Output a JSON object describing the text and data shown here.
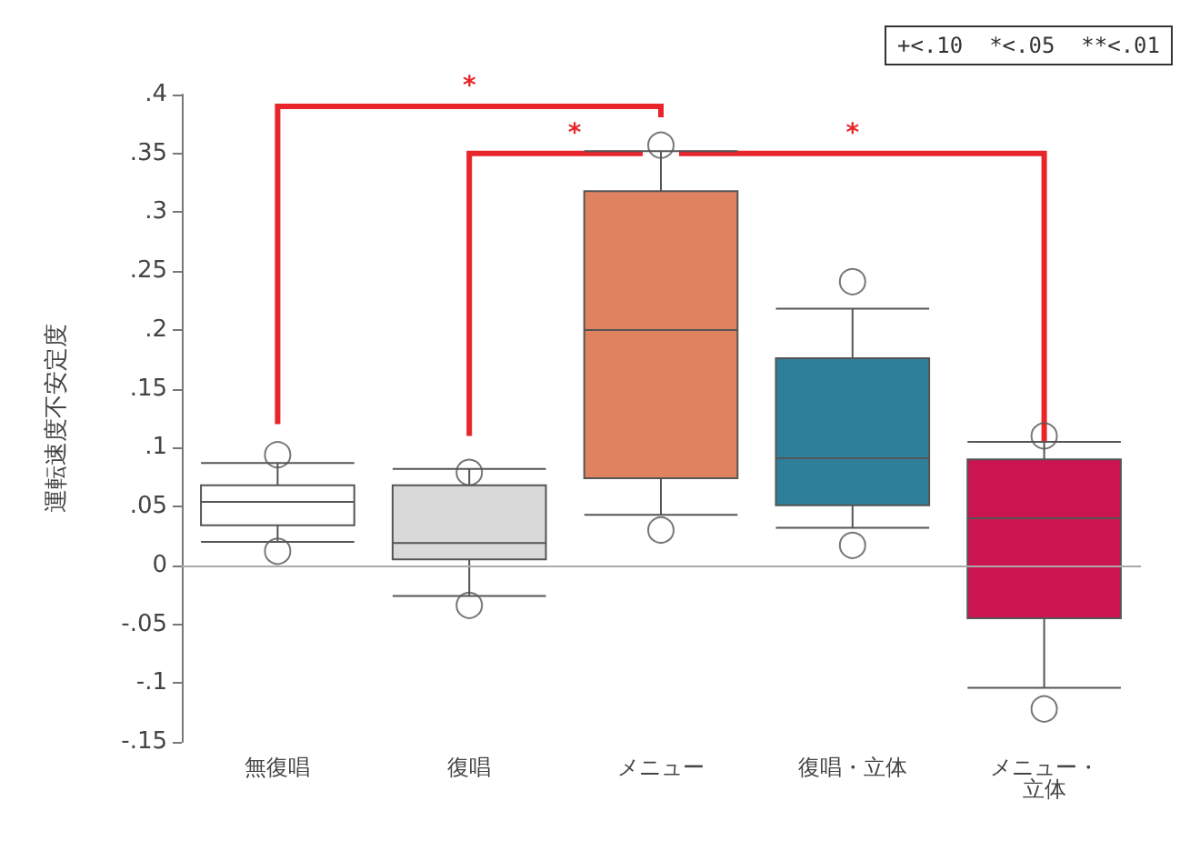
{
  "chart_data": {
    "type": "box",
    "ylabel": "運転速度不安定度",
    "categories": [
      "無復唱",
      "復唱",
      "メニュー",
      "復唱・立体",
      "メニュー・立体"
    ],
    "colors": [
      "#ffffff",
      "#d9d9d9",
      "#e0825f",
      "#2e7f99",
      "#cc1450"
    ],
    "boxes": [
      {
        "low": 0.02,
        "q1": 0.034,
        "median": 0.054,
        "q3": 0.068,
        "high": 0.087,
        "outliers": [
          0.094,
          0.012
        ]
      },
      {
        "low": -0.026,
        "q1": 0.005,
        "median": 0.019,
        "q3": 0.068,
        "high": 0.082,
        "outliers": [
          0.079,
          -0.034
        ]
      },
      {
        "low": 0.043,
        "q1": 0.074,
        "median": 0.2,
        "q3": 0.318,
        "high": 0.352,
        "outliers": [
          0.357,
          0.03
        ]
      },
      {
        "low": 0.032,
        "q1": 0.051,
        "median": 0.091,
        "q3": 0.176,
        "high": 0.218,
        "outliers": [
          0.241,
          0.017
        ]
      },
      {
        "low": -0.104,
        "q1": -0.045,
        "median": 0.04,
        "q3": 0.09,
        "high": 0.105,
        "outliers": [
          0.11,
          -0.122
        ]
      }
    ],
    "ylim": [
      -0.15,
      0.4
    ],
    "yticks": [
      {
        "value": -0.15,
        "label": "-.15"
      },
      {
        "value": -0.1,
        "label": "-.1"
      },
      {
        "value": -0.05,
        "label": "-.05"
      },
      {
        "value": 0,
        "label": "0"
      },
      {
        "value": 0.05,
        "label": ".05"
      },
      {
        "value": 0.1,
        "label": ".1"
      },
      {
        "value": 0.15,
        "label": ".15"
      },
      {
        "value": 0.2,
        "label": ".2"
      },
      {
        "value": 0.25,
        "label": ".25"
      },
      {
        "value": 0.3,
        "label": ".3"
      },
      {
        "value": 0.35,
        "label": ".35"
      },
      {
        "value": 0.4,
        "label": ".4"
      }
    ],
    "ref_lines": [
      {
        "axis": "y",
        "value": 0,
        "color": "#aaaaaa"
      }
    ],
    "annotations": [
      "*",
      "*",
      "*",
      "+<.10  *<.05  **<.01"
    ],
    "grid": false
  }
}
